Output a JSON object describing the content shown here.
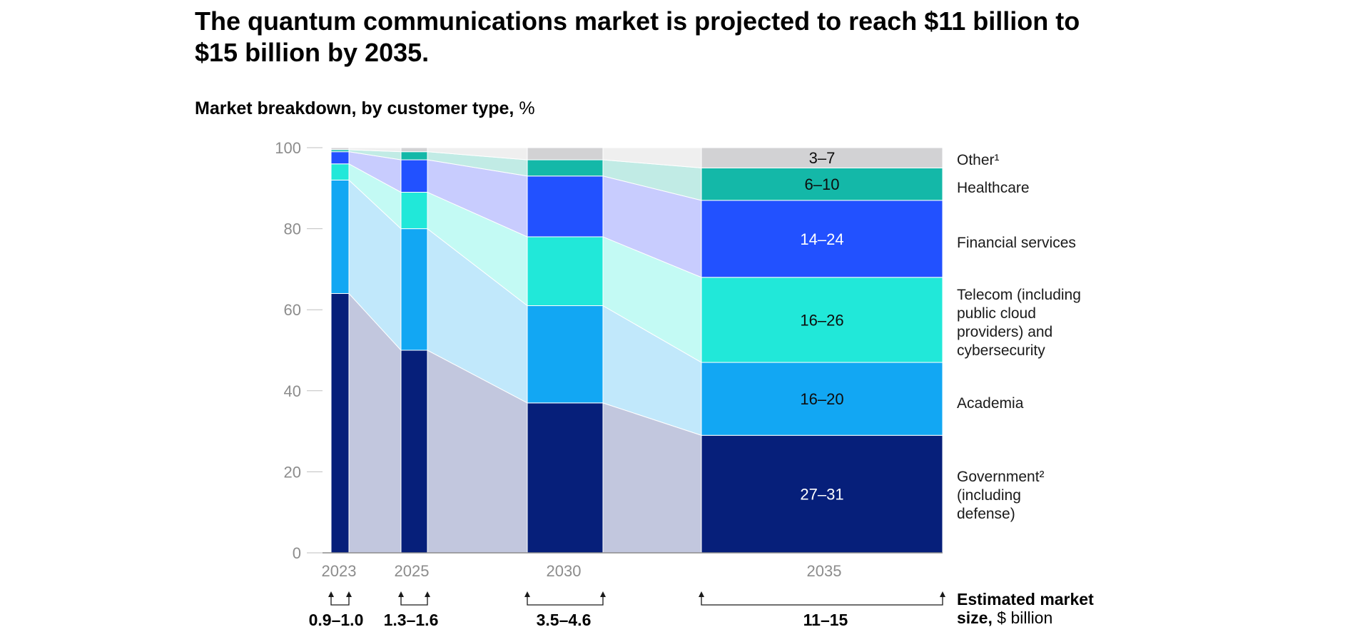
{
  "title": "The quantum communications market is projected to reach $11 billion to $15 billion by 2035.",
  "subtitle_bold": "Market breakdown, by customer type,",
  "subtitle_unit": "%",
  "colors": {
    "government": "#061f7a",
    "academia": "#12a7f3",
    "telecom": "#21e8d9",
    "financial": "#2251ff",
    "healthcare": "#14b8a8",
    "other": "#d2d2d4",
    "government_band": "#c2c7de",
    "academia_band": "#c1e8fb",
    "telecom_band": "#c3faf4",
    "financial_band": "#c8ccfe",
    "healthcare_band": "#c1ebe5",
    "other_band": "#efefef",
    "axis": "#bfbfbf"
  },
  "chart_data": {
    "type": "bar",
    "stacked": true,
    "categories": [
      "2023",
      "2025",
      "2030",
      "2035"
    ],
    "ylim": [
      0,
      100
    ],
    "yticks": [
      "0",
      "20",
      "40",
      "60",
      "80",
      "100"
    ],
    "series": [
      {
        "name": "Government² (including defense)",
        "key": "government",
        "values": [
          64,
          50,
          37,
          29
        ]
      },
      {
        "name": "Academia",
        "key": "academia",
        "values": [
          28,
          30,
          24,
          18
        ]
      },
      {
        "name": "Telecom (including public cloud providers) and cybersecurity",
        "key": "telecom",
        "values": [
          4,
          9,
          17,
          21
        ]
      },
      {
        "name": "Financial services",
        "key": "financial",
        "values": [
          3,
          8,
          15,
          19
        ]
      },
      {
        "name": "Healthcare",
        "key": "healthcare",
        "values": [
          0.5,
          2,
          4,
          8
        ]
      },
      {
        "name": "Other¹",
        "key": "other",
        "values": [
          0.5,
          1,
          3,
          5
        ]
      }
    ],
    "bar_labels_2035": [
      "27–31",
      "16–20",
      "16–26",
      "14–24",
      "6–10",
      "3–7"
    ],
    "legend": {
      "position": "right",
      "items": [
        {
          "key": "other",
          "lines": [
            "Other¹"
          ]
        },
        {
          "key": "healthcare",
          "lines": [
            "Healthcare"
          ]
        },
        {
          "key": "financial",
          "lines": [
            "Financial services"
          ]
        },
        {
          "key": "telecom",
          "lines": [
            "Telecom (including",
            "public cloud",
            "providers) and",
            "cybersecurity"
          ]
        },
        {
          "key": "academia",
          "lines": [
            "Academia"
          ]
        },
        {
          "key": "government",
          "lines": [
            "Government²",
            "(including",
            "defense)"
          ]
        }
      ]
    },
    "market_size": {
      "values": [
        "0.9–1.0",
        "1.3–1.6",
        "3.5–4.6",
        "11–15"
      ],
      "title_bold": "Estimated market",
      "title_line2_bold": "size,",
      "title_line2_rest": " $ billion"
    }
  }
}
